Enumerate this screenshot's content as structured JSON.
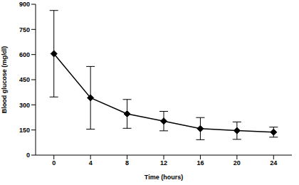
{
  "chart_data": {
    "type": "line",
    "x_label": "Time (hours)",
    "y_label": "Blood glucose (mg/dl)",
    "x": [
      0,
      4,
      8,
      12,
      16,
      20,
      24
    ],
    "values": [
      605,
      342,
      246,
      203,
      158,
      146,
      137
    ],
    "errors": [
      258,
      187,
      86,
      58,
      66,
      52,
      30
    ],
    "color": "#000000",
    "marker": "diamond",
    "line_style": "solid",
    "xlim": [
      -2,
      26
    ],
    "xticks": [
      0,
      4,
      8,
      12,
      16,
      20,
      24
    ],
    "ylim": [
      0,
      900
    ],
    "yticks": [
      0,
      150,
      300,
      450,
      600,
      750,
      900
    ],
    "grid": false
  }
}
